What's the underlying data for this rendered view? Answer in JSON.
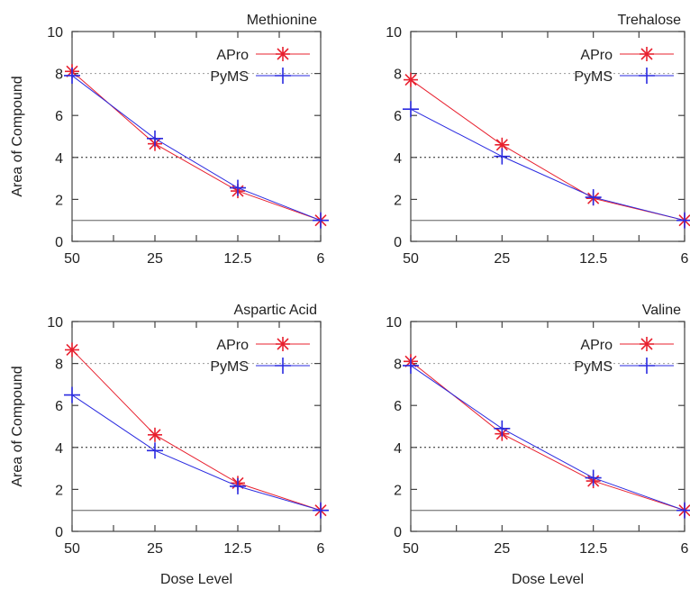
{
  "chart_data": [
    {
      "type": "line",
      "title": "Methionine",
      "xlabel": "",
      "ylabel": "Area of Compound",
      "categories": [
        "50",
        "25",
        "12.5",
        "6"
      ],
      "ylim": [
        0,
        10
      ],
      "yticks": [
        "0",
        "2",
        "4",
        "6",
        "8",
        "10"
      ],
      "reference_lines": [
        1,
        4,
        8
      ],
      "legend_position": "top-right",
      "series": [
        {
          "name": "APro",
          "values": [
            8.1,
            4.65,
            2.4,
            1.0
          ],
          "color": "#e8202e",
          "marker": "asterisk"
        },
        {
          "name": "PyMS",
          "values": [
            7.9,
            4.9,
            2.55,
            1.0
          ],
          "color": "#2a2ae0",
          "marker": "plus"
        }
      ]
    },
    {
      "type": "line",
      "title": "Trehalose",
      "xlabel": "",
      "ylabel": "",
      "categories": [
        "50",
        "25",
        "12.5",
        "6"
      ],
      "ylim": [
        0,
        10
      ],
      "yticks": [
        "0",
        "2",
        "4",
        "6",
        "8",
        "10"
      ],
      "reference_lines": [
        1,
        4,
        8
      ],
      "legend_position": "top-right",
      "series": [
        {
          "name": "APro",
          "values": [
            7.7,
            4.6,
            2.05,
            1.0
          ],
          "color": "#e8202e",
          "marker": "asterisk"
        },
        {
          "name": "PyMS",
          "values": [
            6.3,
            4.05,
            2.1,
            1.0
          ],
          "color": "#2a2ae0",
          "marker": "plus"
        }
      ]
    },
    {
      "type": "line",
      "title": "Aspartic Acid",
      "xlabel": "Dose Level",
      "ylabel": "Area of Compound",
      "categories": [
        "50",
        "25",
        "12.5",
        "6"
      ],
      "ylim": [
        0,
        10
      ],
      "yticks": [
        "0",
        "2",
        "4",
        "6",
        "8",
        "10"
      ],
      "reference_lines": [
        1,
        4,
        8
      ],
      "legend_position": "top-right",
      "series": [
        {
          "name": "APro",
          "values": [
            8.65,
            4.6,
            2.3,
            1.0
          ],
          "color": "#e8202e",
          "marker": "asterisk"
        },
        {
          "name": "PyMS",
          "values": [
            6.5,
            3.85,
            2.15,
            1.0
          ],
          "color": "#2a2ae0",
          "marker": "plus"
        }
      ]
    },
    {
      "type": "line",
      "title": "Valine",
      "xlabel": "Dose Level",
      "ylabel": "",
      "categories": [
        "50",
        "25",
        "12.5",
        "6"
      ],
      "ylim": [
        0,
        10
      ],
      "yticks": [
        "0",
        "2",
        "4",
        "6",
        "8",
        "10"
      ],
      "reference_lines": [
        1,
        4,
        8
      ],
      "legend_position": "top-right",
      "series": [
        {
          "name": "APro",
          "values": [
            8.1,
            4.65,
            2.4,
            1.0
          ],
          "color": "#e8202e",
          "marker": "asterisk"
        },
        {
          "name": "PyMS",
          "values": [
            7.9,
            4.9,
            2.55,
            1.0
          ],
          "color": "#2a2ae0",
          "marker": "plus"
        }
      ]
    }
  ]
}
